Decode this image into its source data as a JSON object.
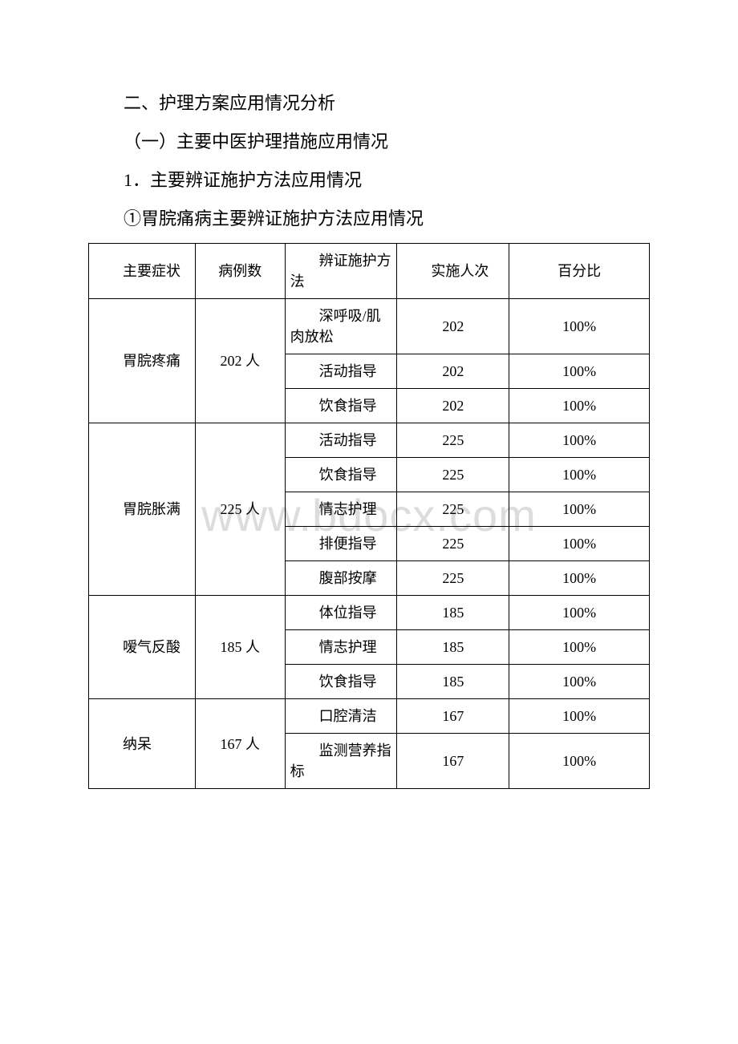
{
  "watermark": "www.bdocx.com",
  "text": {
    "p1": "二、护理方案应用情况分析",
    "p2": "（一）主要中医护理措施应用情况",
    "p3": "1．主要辨证施护方法应用情况",
    "p4": "①胃脘痛病主要辨证施护方法应用情况"
  },
  "table": {
    "header": {
      "c1": "主要症状",
      "c2": "病例数",
      "c3": "辨证施护方法",
      "c4": "实施人次",
      "c5": "百分比"
    },
    "groups": [
      {
        "symptom": "胃脘疼痛",
        "cases": "202 人",
        "rows": [
          {
            "method": "深呼吸/肌肉放松",
            "count": "202",
            "pct": "100%"
          },
          {
            "method": "活动指导",
            "count": "202",
            "pct": "100%"
          },
          {
            "method": "饮食指导",
            "count": "202",
            "pct": "100%"
          }
        ]
      },
      {
        "symptom": "胃脘胀满",
        "cases": "225 人",
        "rows": [
          {
            "method": "活动指导",
            "count": "225",
            "pct": "100%"
          },
          {
            "method": "饮食指导",
            "count": "225",
            "pct": "100%"
          },
          {
            "method": "情志护理",
            "count": "225",
            "pct": "100%"
          },
          {
            "method": "排便指导",
            "count": "225",
            "pct": "100%"
          },
          {
            "method": "腹部按摩",
            "count": "225",
            "pct": "100%"
          }
        ]
      },
      {
        "symptom": "嗳气反酸",
        "cases": "185 人",
        "rows": [
          {
            "method": "体位指导",
            "count": "185",
            "pct": "100%"
          },
          {
            "method": "情志护理",
            "count": "185",
            "pct": "100%"
          },
          {
            "method": "饮食指导",
            "count": "185",
            "pct": "100%"
          }
        ]
      },
      {
        "symptom": "纳呆",
        "cases": "167 人",
        "rows": [
          {
            "method": "口腔清洁",
            "count": "167",
            "pct": "100%"
          },
          {
            "method": "监测营养指标",
            "count": "167",
            "pct": "100%"
          }
        ]
      }
    ]
  }
}
